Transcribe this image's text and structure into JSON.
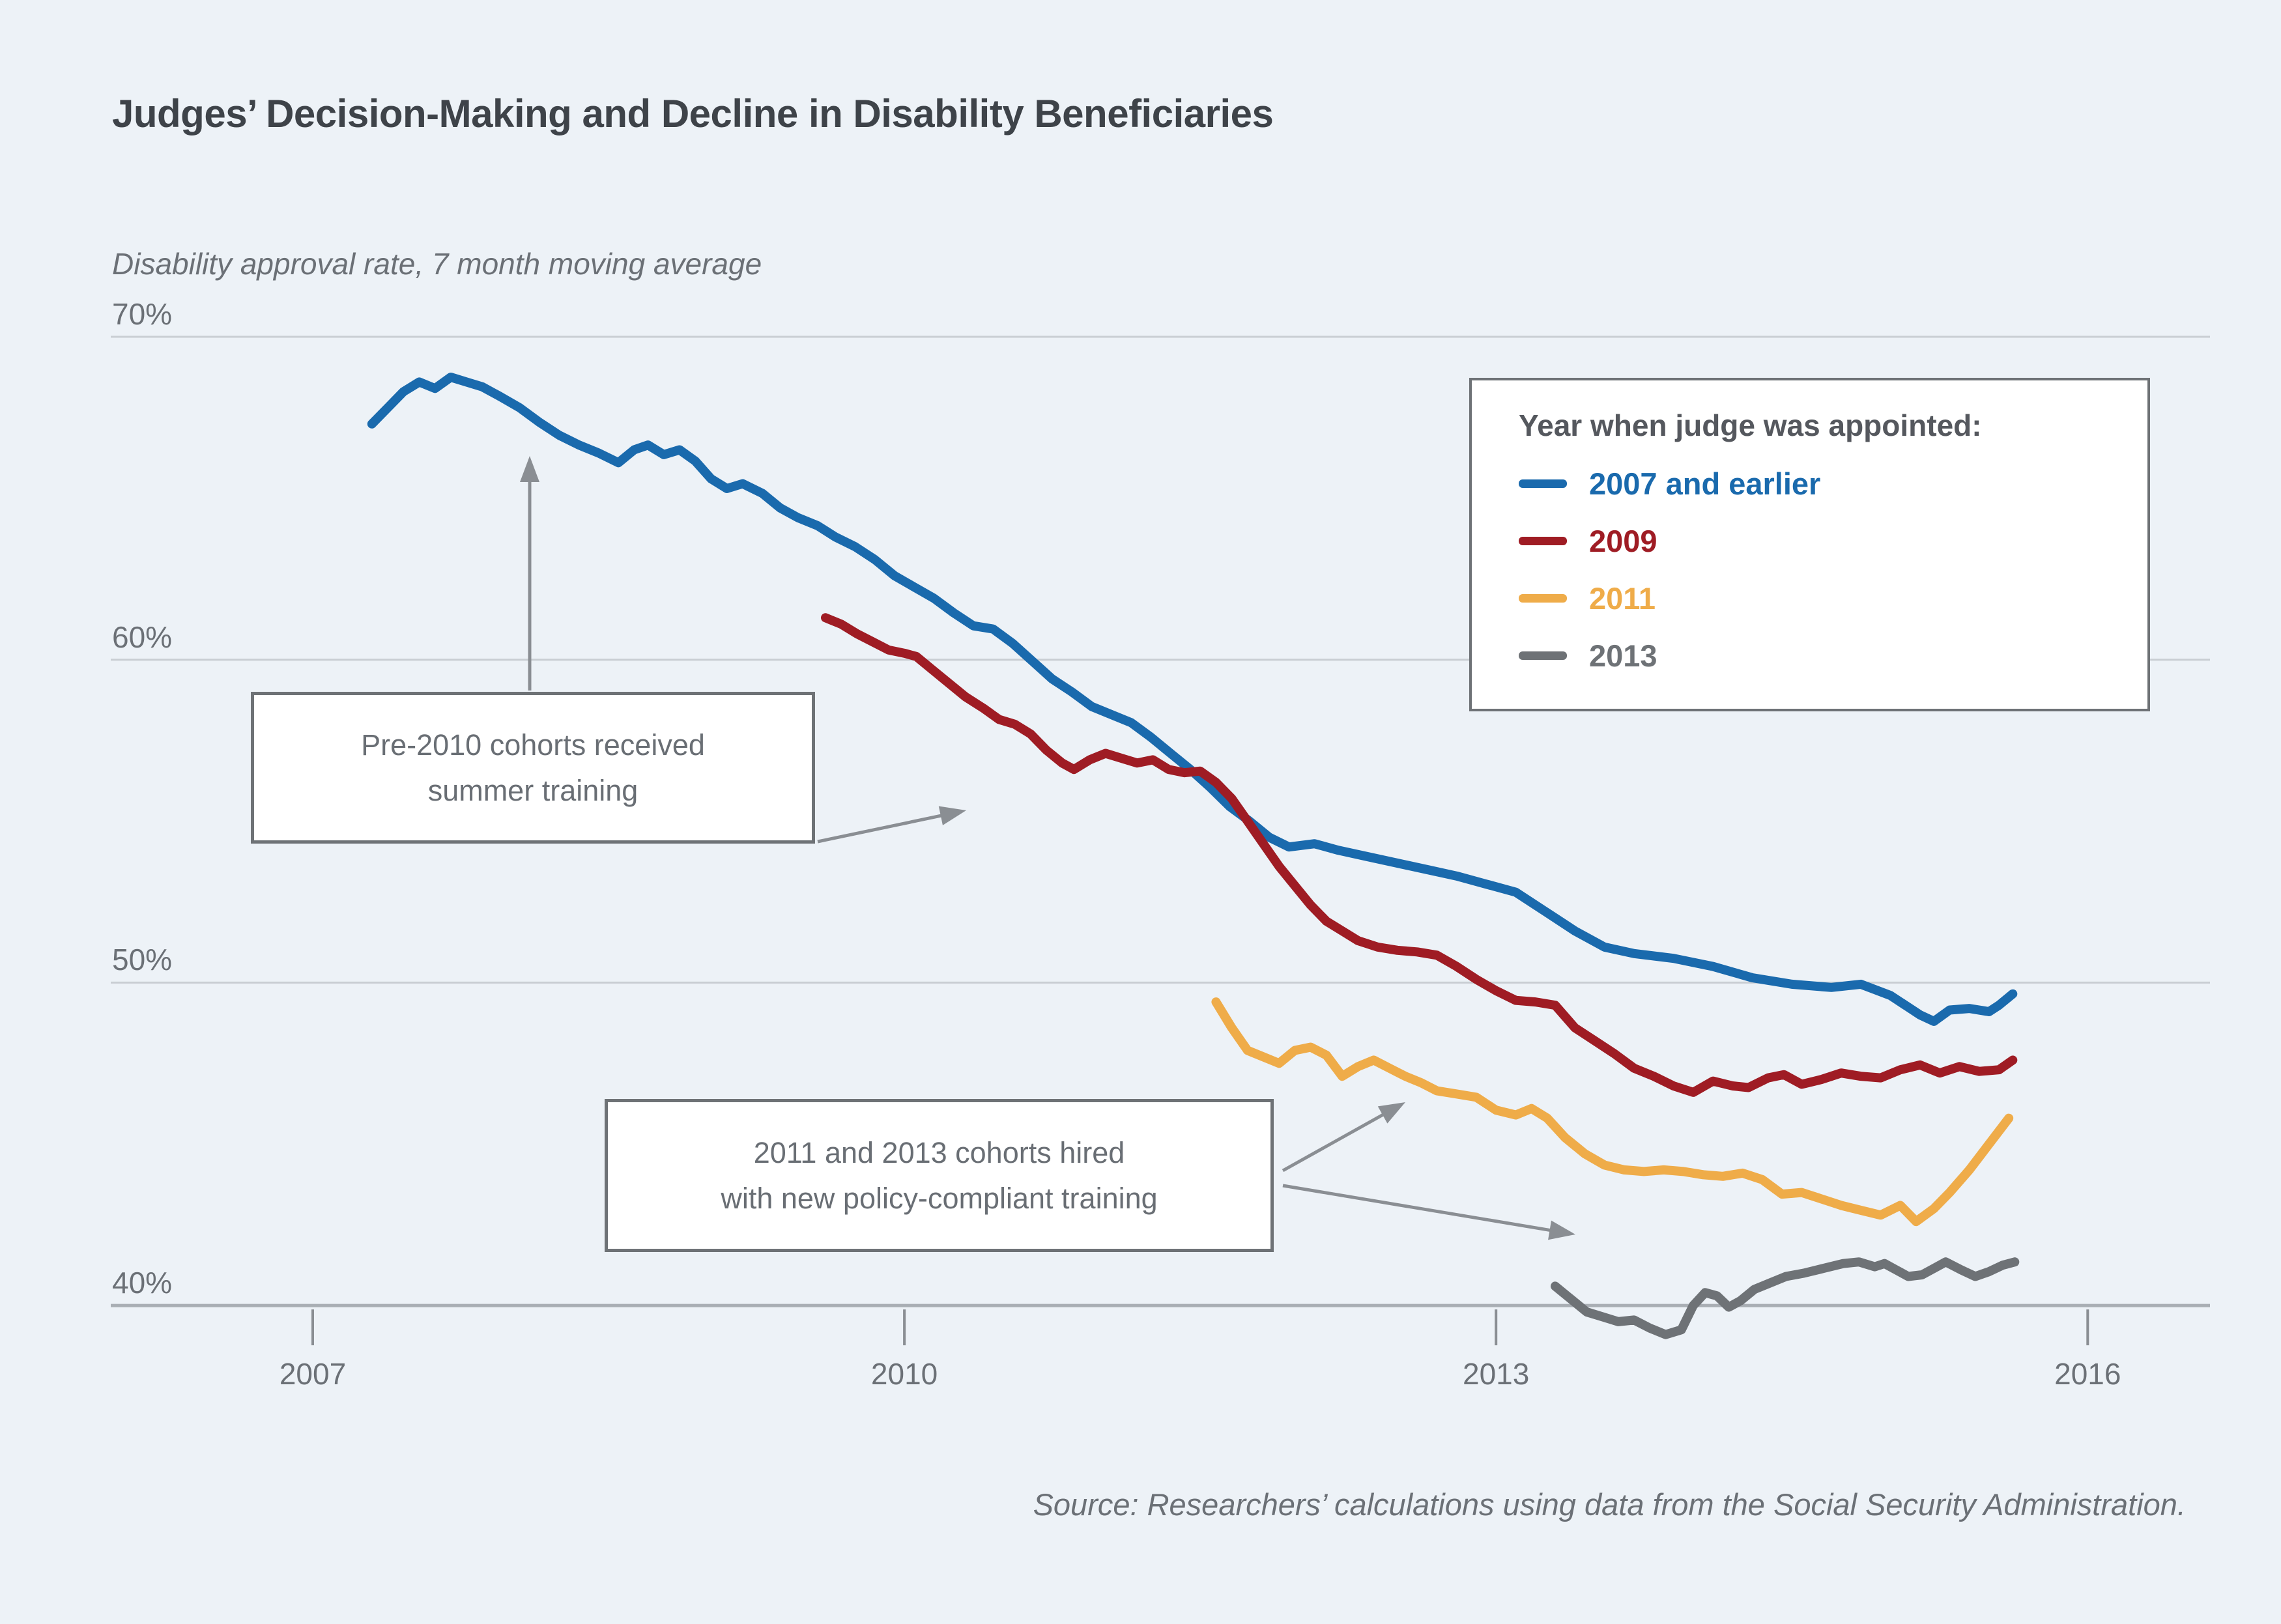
{
  "title": "Judges’ Decision-Making and Decline in Disability Beneficiaries",
  "subtitle": "Disability approval rate, 7 month moving average",
  "source_note": "Source: Researchers’ calculations using data from the Social Security Administration.",
  "colors": {
    "background": "#edf2f7",
    "blue": "#1a6aad",
    "dark_red": "#9f1c24",
    "orange": "#efac49",
    "gray": "#6e7276",
    "gridline": "#c9ced3",
    "axis_line": "#a9aeb4",
    "arrow": "#8a8e93",
    "text_dark": "#3e4349",
    "text_gray": "#6b7076"
  },
  "legend": {
    "title": "Year when judge was appointed:",
    "items": [
      {
        "label": "2007 and earlier",
        "color": "#1a6aad"
      },
      {
        "label": "2009",
        "color": "#9f1c24"
      },
      {
        "label": "2011",
        "color": "#efac49"
      },
      {
        "label": "2013",
        "color": "#6e7276"
      }
    ]
  },
  "annotations": [
    {
      "id": "note-pre-2010",
      "lines": [
        "Pre-2010 cohorts received",
        "summer training"
      ]
    },
    {
      "id": "note-2011-2013",
      "lines": [
        "2011 and 2013 cohorts hired",
        "with new policy-compliant training"
      ]
    }
  ],
  "chart_data": {
    "type": "line",
    "title": "Judges’ Decision-Making and Decline in Disability Beneficiaries",
    "xlabel": "",
    "ylabel": "Disability approval rate, 7 month moving average",
    "xlim": [
      2006.45,
      2016.62
    ],
    "ylim": [
      38.5,
      71
    ],
    "grid": "horizontal",
    "legend_position": "top-right",
    "x_ticks": [
      {
        "value": 2007,
        "label": "2007"
      },
      {
        "value": 2010,
        "label": "2010"
      },
      {
        "value": 2013,
        "label": "2013"
      },
      {
        "value": 2016,
        "label": "2016"
      }
    ],
    "y_ticks": [
      {
        "value": 70,
        "label": "70%"
      },
      {
        "value": 60,
        "label": "60%"
      },
      {
        "value": 50,
        "label": "50%"
      },
      {
        "value": 40,
        "label": "40%"
      }
    ],
    "series": [
      {
        "name": "2007 and earlier",
        "color": "#1a6aad",
        "points": [
          [
            2007.3,
            67.3
          ],
          [
            2007.38,
            67.8
          ],
          [
            2007.46,
            68.3
          ],
          [
            2007.54,
            68.6
          ],
          [
            2007.62,
            68.4
          ],
          [
            2007.7,
            68.75
          ],
          [
            2007.78,
            68.6
          ],
          [
            2007.86,
            68.45
          ],
          [
            2007.95,
            68.15
          ],
          [
            2008.05,
            67.8
          ],
          [
            2008.15,
            67.35
          ],
          [
            2008.25,
            66.95
          ],
          [
            2008.35,
            66.65
          ],
          [
            2008.45,
            66.4
          ],
          [
            2008.55,
            66.1
          ],
          [
            2008.63,
            66.5
          ],
          [
            2008.7,
            66.65
          ],
          [
            2008.78,
            66.35
          ],
          [
            2008.86,
            66.5
          ],
          [
            2008.94,
            66.15
          ],
          [
            2009.02,
            65.6
          ],
          [
            2009.1,
            65.3
          ],
          [
            2009.18,
            65.45
          ],
          [
            2009.28,
            65.15
          ],
          [
            2009.37,
            64.7
          ],
          [
            2009.46,
            64.4
          ],
          [
            2009.56,
            64.15
          ],
          [
            2009.65,
            63.8
          ],
          [
            2009.75,
            63.5
          ],
          [
            2009.85,
            63.1
          ],
          [
            2009.95,
            62.6
          ],
          [
            2010.05,
            62.25
          ],
          [
            2010.15,
            61.9
          ],
          [
            2010.25,
            61.45
          ],
          [
            2010.35,
            61.05
          ],
          [
            2010.45,
            60.95
          ],
          [
            2010.55,
            60.5
          ],
          [
            2010.65,
            59.95
          ],
          [
            2010.75,
            59.4
          ],
          [
            2010.85,
            59.0
          ],
          [
            2010.95,
            58.55
          ],
          [
            2011.05,
            58.3
          ],
          [
            2011.15,
            58.05
          ],
          [
            2011.25,
            57.6
          ],
          [
            2011.35,
            57.1
          ],
          [
            2011.45,
            56.6
          ],
          [
            2011.55,
            56.05
          ],
          [
            2011.65,
            55.45
          ],
          [
            2011.75,
            55.0
          ],
          [
            2011.85,
            54.5
          ],
          [
            2011.95,
            54.2
          ],
          [
            2012.08,
            54.3
          ],
          [
            2012.2,
            54.1
          ],
          [
            2012.35,
            53.9
          ],
          [
            2012.5,
            53.7
          ],
          [
            2012.65,
            53.5
          ],
          [
            2012.8,
            53.3
          ],
          [
            2012.95,
            53.05
          ],
          [
            2013.1,
            52.8
          ],
          [
            2013.25,
            52.2
          ],
          [
            2013.4,
            51.6
          ],
          [
            2013.55,
            51.1
          ],
          [
            2013.7,
            50.9
          ],
          [
            2013.9,
            50.75
          ],
          [
            2014.1,
            50.5
          ],
          [
            2014.3,
            50.15
          ],
          [
            2014.5,
            49.95
          ],
          [
            2014.7,
            49.85
          ],
          [
            2014.85,
            49.95
          ],
          [
            2015.0,
            49.6
          ],
          [
            2015.15,
            49.0
          ],
          [
            2015.22,
            48.8
          ],
          [
            2015.3,
            49.15
          ],
          [
            2015.4,
            49.2
          ],
          [
            2015.5,
            49.1
          ],
          [
            2015.55,
            49.3
          ],
          [
            2015.62,
            49.65
          ]
        ]
      },
      {
        "name": "2009",
        "color": "#9f1c24",
        "points": [
          [
            2009.6,
            61.3
          ],
          [
            2009.68,
            61.1
          ],
          [
            2009.76,
            60.8
          ],
          [
            2009.84,
            60.55
          ],
          [
            2009.92,
            60.3
          ],
          [
            2010.0,
            60.2
          ],
          [
            2010.06,
            60.1
          ],
          [
            2010.14,
            59.7
          ],
          [
            2010.22,
            59.3
          ],
          [
            2010.31,
            58.85
          ],
          [
            2010.4,
            58.5
          ],
          [
            2010.48,
            58.15
          ],
          [
            2010.56,
            58.0
          ],
          [
            2010.64,
            57.7
          ],
          [
            2010.72,
            57.2
          ],
          [
            2010.8,
            56.8
          ],
          [
            2010.86,
            56.6
          ],
          [
            2010.94,
            56.9
          ],
          [
            2011.02,
            57.1
          ],
          [
            2011.1,
            56.95
          ],
          [
            2011.18,
            56.8
          ],
          [
            2011.26,
            56.9
          ],
          [
            2011.34,
            56.6
          ],
          [
            2011.42,
            56.5
          ],
          [
            2011.5,
            56.55
          ],
          [
            2011.58,
            56.2
          ],
          [
            2011.66,
            55.7
          ],
          [
            2011.74,
            55.0
          ],
          [
            2011.82,
            54.3
          ],
          [
            2011.9,
            53.6
          ],
          [
            2011.98,
            53.0
          ],
          [
            2012.06,
            52.4
          ],
          [
            2012.14,
            51.9
          ],
          [
            2012.22,
            51.6
          ],
          [
            2012.3,
            51.3
          ],
          [
            2012.4,
            51.1
          ],
          [
            2012.5,
            51.0
          ],
          [
            2012.6,
            50.95
          ],
          [
            2012.7,
            50.85
          ],
          [
            2012.8,
            50.5
          ],
          [
            2012.9,
            50.1
          ],
          [
            2013.0,
            49.75
          ],
          [
            2013.1,
            49.45
          ],
          [
            2013.2,
            49.4
          ],
          [
            2013.3,
            49.3
          ],
          [
            2013.4,
            48.6
          ],
          [
            2013.5,
            48.2
          ],
          [
            2013.6,
            47.8
          ],
          [
            2013.7,
            47.35
          ],
          [
            2013.8,
            47.1
          ],
          [
            2013.9,
            46.8
          ],
          [
            2014.0,
            46.6
          ],
          [
            2014.1,
            46.95
          ],
          [
            2014.2,
            46.8
          ],
          [
            2014.28,
            46.75
          ],
          [
            2014.38,
            47.05
          ],
          [
            2014.46,
            47.15
          ],
          [
            2014.55,
            46.85
          ],
          [
            2014.65,
            47.0
          ],
          [
            2014.75,
            47.2
          ],
          [
            2014.85,
            47.1
          ],
          [
            2014.95,
            47.05
          ],
          [
            2015.05,
            47.3
          ],
          [
            2015.15,
            47.45
          ],
          [
            2015.25,
            47.2
          ],
          [
            2015.35,
            47.4
          ],
          [
            2015.45,
            47.25
          ],
          [
            2015.55,
            47.3
          ],
          [
            2015.62,
            47.6
          ]
        ]
      },
      {
        "name": "2011",
        "color": "#efac49",
        "points": [
          [
            2011.58,
            49.4
          ],
          [
            2011.66,
            48.6
          ],
          [
            2011.74,
            47.9
          ],
          [
            2011.82,
            47.7
          ],
          [
            2011.9,
            47.5
          ],
          [
            2011.98,
            47.9
          ],
          [
            2012.06,
            48.0
          ],
          [
            2012.14,
            47.75
          ],
          [
            2012.22,
            47.1
          ],
          [
            2012.3,
            47.4
          ],
          [
            2012.38,
            47.6
          ],
          [
            2012.46,
            47.35
          ],
          [
            2012.54,
            47.1
          ],
          [
            2012.62,
            46.9
          ],
          [
            2012.7,
            46.65
          ],
          [
            2012.8,
            46.55
          ],
          [
            2012.9,
            46.45
          ],
          [
            2013.0,
            46.05
          ],
          [
            2013.1,
            45.9
          ],
          [
            2013.18,
            46.1
          ],
          [
            2013.26,
            45.8
          ],
          [
            2013.35,
            45.2
          ],
          [
            2013.45,
            44.7
          ],
          [
            2013.55,
            44.35
          ],
          [
            2013.65,
            44.2
          ],
          [
            2013.75,
            44.15
          ],
          [
            2013.85,
            44.2
          ],
          [
            2013.95,
            44.15
          ],
          [
            2014.05,
            44.05
          ],
          [
            2014.15,
            44.0
          ],
          [
            2014.25,
            44.1
          ],
          [
            2014.35,
            43.9
          ],
          [
            2014.45,
            43.45
          ],
          [
            2014.55,
            43.5
          ],
          [
            2014.65,
            43.3
          ],
          [
            2014.75,
            43.1
          ],
          [
            2014.85,
            42.95
          ],
          [
            2014.95,
            42.8
          ],
          [
            2015.05,
            43.1
          ],
          [
            2015.13,
            42.6
          ],
          [
            2015.22,
            43.0
          ],
          [
            2015.3,
            43.5
          ],
          [
            2015.4,
            44.2
          ],
          [
            2015.5,
            45.0
          ],
          [
            2015.6,
            45.8
          ]
        ]
      },
      {
        "name": "2013",
        "color": "#6e7276",
        "points": [
          [
            2013.3,
            40.6
          ],
          [
            2013.38,
            40.2
          ],
          [
            2013.46,
            39.8
          ],
          [
            2013.54,
            39.65
          ],
          [
            2013.62,
            39.5
          ],
          [
            2013.7,
            39.55
          ],
          [
            2013.78,
            39.3
          ],
          [
            2013.86,
            39.1
          ],
          [
            2013.94,
            39.25
          ],
          [
            2014.0,
            40.0
          ],
          [
            2014.06,
            40.4
          ],
          [
            2014.12,
            40.3
          ],
          [
            2014.18,
            39.95
          ],
          [
            2014.24,
            40.15
          ],
          [
            2014.31,
            40.5
          ],
          [
            2014.39,
            40.7
          ],
          [
            2014.47,
            40.9
          ],
          [
            2014.56,
            41.0
          ],
          [
            2014.66,
            41.15
          ],
          [
            2014.76,
            41.3
          ],
          [
            2014.84,
            41.35
          ],
          [
            2014.92,
            41.2
          ],
          [
            2014.97,
            41.3
          ],
          [
            2015.03,
            41.1
          ],
          [
            2015.09,
            40.9
          ],
          [
            2015.16,
            40.95
          ],
          [
            2015.22,
            41.15
          ],
          [
            2015.28,
            41.35
          ],
          [
            2015.36,
            41.1
          ],
          [
            2015.43,
            40.9
          ],
          [
            2015.5,
            41.05
          ],
          [
            2015.57,
            41.25
          ],
          [
            2015.63,
            41.35
          ]
        ]
      }
    ]
  }
}
